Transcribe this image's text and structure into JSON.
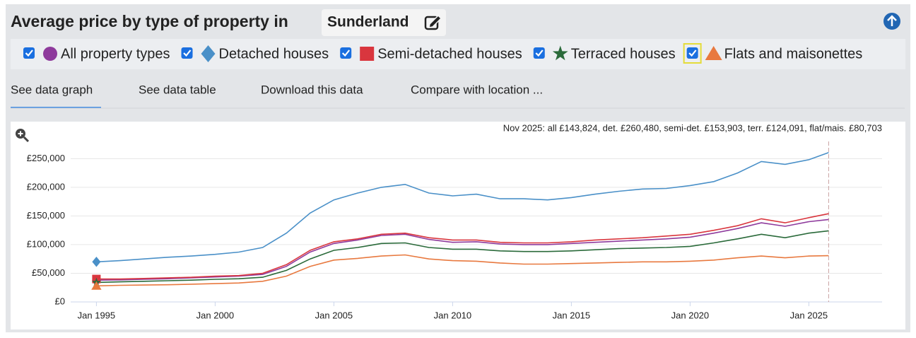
{
  "header": {
    "title": "Average price by type of property in",
    "location": "Sunderland"
  },
  "tabs": [
    "See data graph",
    "See data table",
    "Download this data",
    "Compare with location ..."
  ],
  "chart_data": {
    "type": "line",
    "annotation": "Nov 2025: all £143,824, det. £260,480, semi-det. £153,903, terr. £124,091, flat/mais. £80,703",
    "x": [
      "Jan 1995",
      "Jan 1996",
      "Jan 1997",
      "Jan 1998",
      "Jan 1999",
      "Jan 2000",
      "Jan 2001",
      "Jan 2002",
      "Jan 2003",
      "Jan 2004",
      "Jan 2005",
      "Jan 2006",
      "Jan 2007",
      "Jan 2008",
      "Jan 2009",
      "Jan 2010",
      "Jan 2011",
      "Jan 2012",
      "Jan 2013",
      "Jan 2014",
      "Jan 2015",
      "Jan 2016",
      "Jan 2017",
      "Jan 2018",
      "Jan 2019",
      "Jan 2020",
      "Jan 2021",
      "Jan 2022",
      "Jan 2023",
      "Jan 2024",
      "Jan 2025",
      "Nov 2025"
    ],
    "xlim": [
      "Dec 1993",
      "Feb 2028"
    ],
    "xticks": [
      "Jan 1995",
      "Jan 2000",
      "Jan 2005",
      "Jan 2010",
      "Jan 2015",
      "Jan 2020",
      "Jan 2025"
    ],
    "ylim": [
      0,
      280000
    ],
    "yticks": [
      {
        "value": 0,
        "label": "£0"
      },
      {
        "value": 50000,
        "label": "£50,000"
      },
      {
        "value": 100000,
        "label": "£100,000"
      },
      {
        "value": 150000,
        "label": "£150,000"
      },
      {
        "value": 200000,
        "label": "£200,000"
      },
      {
        "value": 250000,
        "label": "£250,000"
      }
    ],
    "grid": true,
    "series": [
      {
        "name": "All property types",
        "color": "#8e3a9c",
        "marker": "circle",
        "values": [
          38000,
          38500,
          39500,
          40500,
          42000,
          43500,
          45000,
          48000,
          62000,
          87000,
          102000,
          108000,
          116000,
          118000,
          109000,
          104000,
          105000,
          101000,
          100000,
          100000,
          102000,
          104000,
          106000,
          108000,
          110000,
          113000,
          120000,
          128000,
          138000,
          132000,
          140000,
          143824
        ]
      },
      {
        "name": "Detached houses",
        "color": "#4a90c8",
        "marker": "diamond",
        "values": [
          70000,
          72000,
          75000,
          78000,
          80000,
          83000,
          87000,
          95000,
          120000,
          155000,
          178000,
          190000,
          200000,
          205000,
          190000,
          185000,
          188000,
          180000,
          180000,
          178000,
          182000,
          188000,
          193000,
          197000,
          198000,
          203000,
          210000,
          225000,
          245000,
          240000,
          248000,
          260480
        ]
      },
      {
        "name": "Semi-detached houses",
        "color": "#d9363e",
        "marker": "square",
        "values": [
          40000,
          40000,
          41000,
          42000,
          43000,
          45000,
          46000,
          50000,
          65000,
          90000,
          105000,
          110000,
          118000,
          120000,
          112000,
          108000,
          108000,
          104000,
          103000,
          103000,
          105000,
          108000,
          110000,
          112000,
          115000,
          118000,
          125000,
          133000,
          145000,
          138000,
          147000,
          153903
        ]
      },
      {
        "name": "Terraced houses",
        "color": "#2a6a3a",
        "marker": "star",
        "values": [
          34000,
          35000,
          36000,
          37000,
          38000,
          39500,
          40500,
          43000,
          55000,
          75000,
          90000,
          95000,
          102000,
          103000,
          95000,
          92000,
          92000,
          89000,
          88000,
          88000,
          89000,
          91000,
          93000,
          94000,
          95000,
          97000,
          103000,
          110000,
          118000,
          112000,
          120000,
          124091
        ]
      },
      {
        "name": "Flats and maisonettes",
        "color": "#e8793f",
        "marker": "triangle",
        "values": [
          28000,
          29000,
          29500,
          30000,
          31000,
          32000,
          33000,
          36000,
          45000,
          62000,
          73000,
          76000,
          80000,
          82000,
          75000,
          72000,
          71000,
          68000,
          66000,
          66000,
          67000,
          68000,
          69000,
          70000,
          70000,
          71000,
          73000,
          77000,
          80000,
          77000,
          80000,
          80703
        ]
      }
    ]
  }
}
